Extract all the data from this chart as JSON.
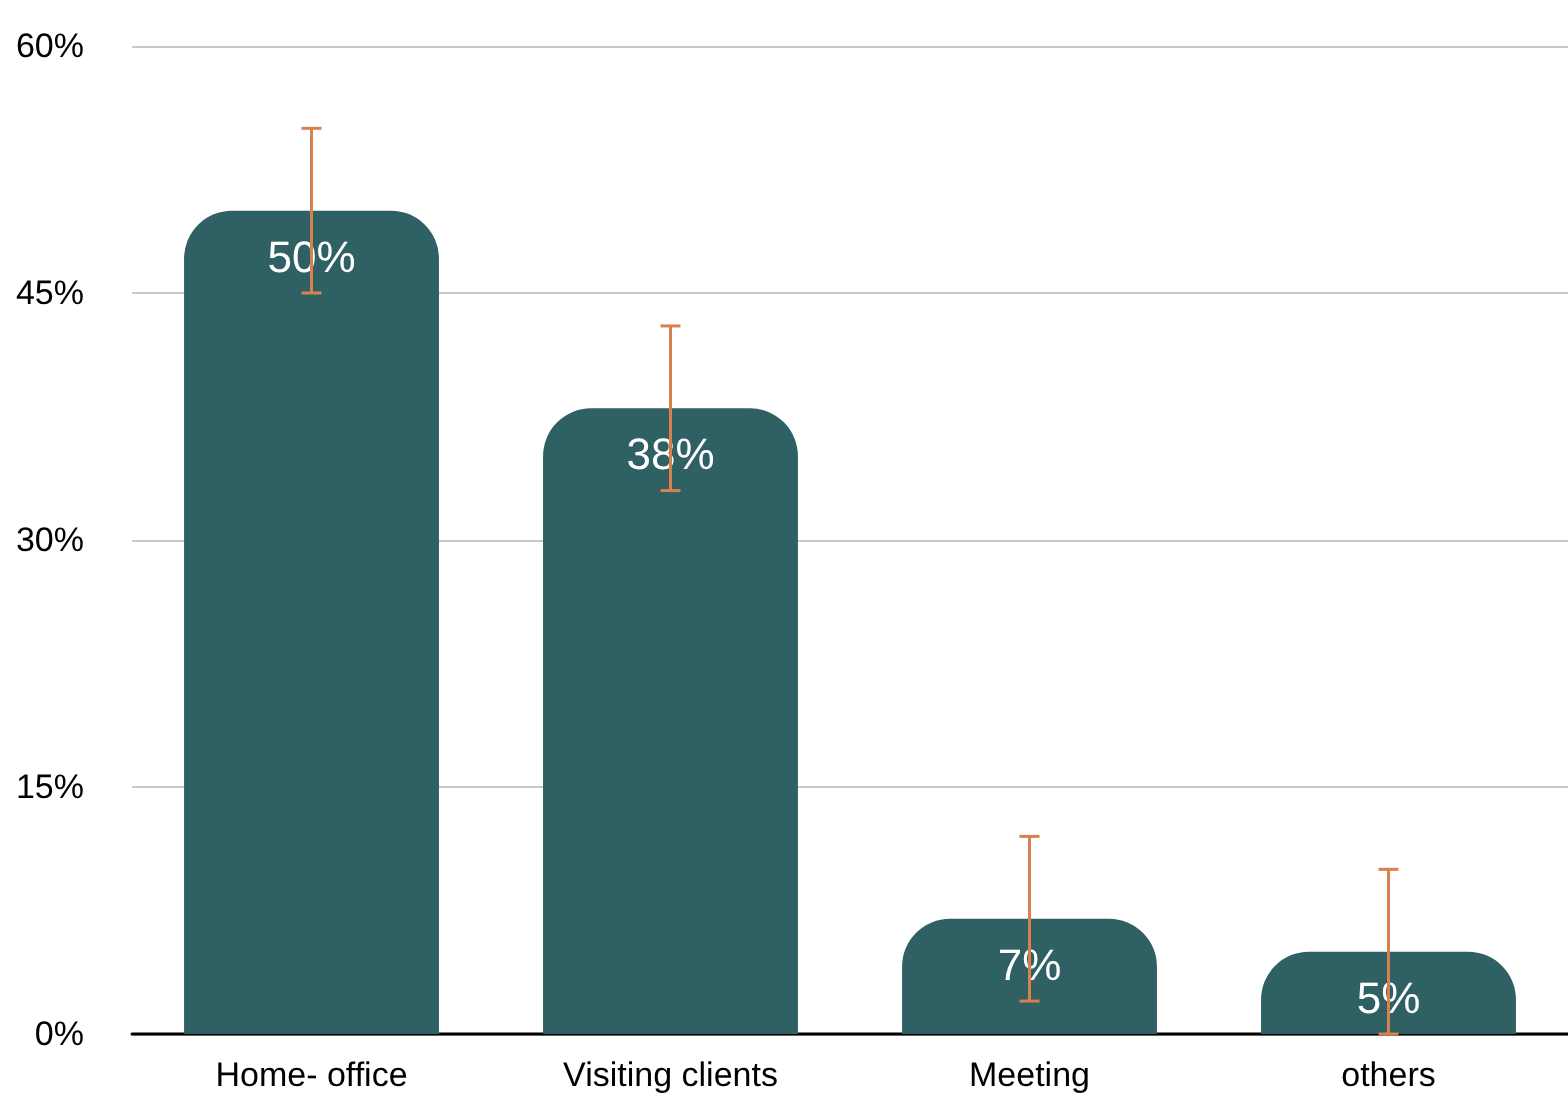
{
  "chart_data": {
    "type": "bar",
    "categories": [
      "Home- office",
      "Visiting clients",
      "Meeting",
      "others"
    ],
    "values": [
      50,
      38,
      7,
      5
    ],
    "value_labels": [
      "50%",
      "38%",
      "7%",
      "5%"
    ],
    "errors": [
      5,
      5,
      5,
      5
    ],
    "color": "#2f6063",
    "ylim": [
      0,
      60
    ],
    "yticks": [
      {
        "value": 0,
        "label": "0%"
      },
      {
        "value": 15,
        "label": "15%"
      },
      {
        "value": 30,
        "label": "30%"
      },
      {
        "value": 45,
        "label": "45%"
      },
      {
        "value": 60,
        "label": "60%"
      }
    ],
    "grid": "y"
  }
}
